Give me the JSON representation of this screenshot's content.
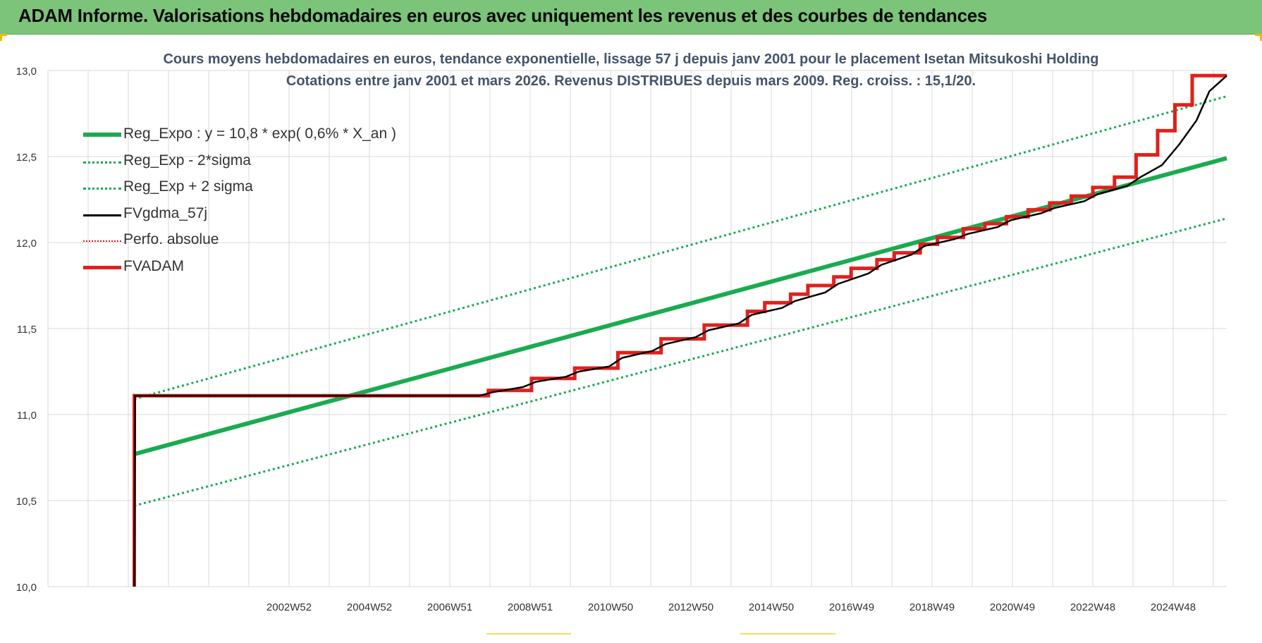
{
  "header": {
    "title": "ADAM Informe. Valorisations hebdomadaires en euros avec uniquement les revenus et des courbes de tendances"
  },
  "colors": {
    "banner": "#7cc47a",
    "trend": "#1aab50",
    "band": "#1aab50",
    "smooth": "#000000",
    "perf": "#e0201c",
    "adam": "#e0201c",
    "grid": "#d9d9d9",
    "title": "#44546a"
  },
  "chart_data": {
    "type": "line",
    "title": "Cours moyens hebdomadaires en euros, tendance exponentielle, lissage 57 j depuis janv 2001  pour le placement Isetan Mitsukoshi Holding",
    "subtitle": "Cotations entre janv 2001 et mars 2026. Revenus DISTRIBUES depuis mars 2009. Reg. croiss. : 15,1/20.",
    "xlabel": "",
    "ylabel": "",
    "ylim": [
      10.0,
      13.0
    ],
    "y_ticks": [
      "10,0",
      "10,5",
      "11,0",
      "11,5",
      "12,0",
      "12,5",
      "13,0"
    ],
    "x_ticks": [
      "2002W52",
      "2004W52",
      "2006W51",
      "2008W51",
      "2010W50",
      "2012W50",
      "2014W50",
      "2016W49",
      "2018W49",
      "2020W49",
      "2022W48",
      "2024W48"
    ],
    "x_range": [
      1999.0,
      2026.3
    ],
    "grid": true,
    "legend_position": "top-left",
    "series": [
      {
        "name": "Reg_Expo : y = 10,8 * exp( 0,6% *  X_an )",
        "style": "solid-thick",
        "points": [
          [
            2001.0,
            10.77
          ],
          [
            2026.3,
            12.49
          ]
        ]
      },
      {
        "name": "Reg_Exp - 2*sigma",
        "style": "dotted",
        "points": [
          [
            2001.0,
            10.47
          ],
          [
            2026.3,
            12.14
          ]
        ]
      },
      {
        "name": "Reg_Exp + 2 sigma",
        "style": "dotted",
        "points": [
          [
            2001.0,
            11.09
          ],
          [
            2026.3,
            12.85
          ]
        ]
      },
      {
        "name": "FVgdma_57j",
        "style": "solid",
        "points": [
          [
            2001.0,
            10.0
          ],
          [
            2001.02,
            11.11
          ],
          [
            2009.0,
            11.11
          ],
          [
            2009.3,
            11.13
          ],
          [
            2010.0,
            11.16
          ],
          [
            2010.3,
            11.19
          ],
          [
            2011.0,
            11.22
          ],
          [
            2011.3,
            11.25
          ],
          [
            2012.0,
            11.28
          ],
          [
            2012.3,
            11.33
          ],
          [
            2013.0,
            11.37
          ],
          [
            2013.3,
            11.41
          ],
          [
            2014.0,
            11.45
          ],
          [
            2014.3,
            11.49
          ],
          [
            2015.0,
            11.53
          ],
          [
            2015.3,
            11.58
          ],
          [
            2016.0,
            11.62
          ],
          [
            2016.3,
            11.66
          ],
          [
            2017.0,
            11.71
          ],
          [
            2017.3,
            11.76
          ],
          [
            2018.0,
            11.82
          ],
          [
            2018.3,
            11.87
          ],
          [
            2019.0,
            11.93
          ],
          [
            2019.3,
            11.98
          ],
          [
            2020.0,
            12.02
          ],
          [
            2020.3,
            12.05
          ],
          [
            2021.0,
            12.09
          ],
          [
            2021.3,
            12.13
          ],
          [
            2022.0,
            12.17
          ],
          [
            2022.3,
            12.2
          ],
          [
            2023.0,
            12.24
          ],
          [
            2023.3,
            12.28
          ],
          [
            2024.0,
            12.33
          ],
          [
            2024.3,
            12.38
          ],
          [
            2024.8,
            12.45
          ],
          [
            2025.2,
            12.57
          ],
          [
            2025.6,
            12.71
          ],
          [
            2025.9,
            12.88
          ],
          [
            2026.3,
            12.97
          ]
        ]
      },
      {
        "name": "Perfo. absolue",
        "style": "dotted",
        "points": []
      },
      {
        "name": "FVADAM",
        "style": "step-thick",
        "points": [
          [
            2001.0,
            10.0
          ],
          [
            2001.0,
            11.11
          ],
          [
            2009.2,
            11.11
          ],
          [
            2009.2,
            11.14
          ],
          [
            2010.2,
            11.14
          ],
          [
            2010.2,
            11.21
          ],
          [
            2011.2,
            11.21
          ],
          [
            2011.2,
            11.27
          ],
          [
            2012.2,
            11.27
          ],
          [
            2012.2,
            11.36
          ],
          [
            2013.2,
            11.36
          ],
          [
            2013.2,
            11.44
          ],
          [
            2014.2,
            11.44
          ],
          [
            2014.2,
            11.52
          ],
          [
            2015.2,
            11.52
          ],
          [
            2015.2,
            11.6
          ],
          [
            2015.6,
            11.6
          ],
          [
            2015.6,
            11.65
          ],
          [
            2016.2,
            11.65
          ],
          [
            2016.2,
            11.7
          ],
          [
            2016.6,
            11.7
          ],
          [
            2016.6,
            11.75
          ],
          [
            2017.2,
            11.75
          ],
          [
            2017.2,
            11.8
          ],
          [
            2017.6,
            11.8
          ],
          [
            2017.6,
            11.85
          ],
          [
            2018.2,
            11.85
          ],
          [
            2018.2,
            11.9
          ],
          [
            2018.6,
            11.9
          ],
          [
            2018.6,
            11.94
          ],
          [
            2019.2,
            11.94
          ],
          [
            2019.2,
            11.99
          ],
          [
            2019.6,
            11.99
          ],
          [
            2019.6,
            12.03
          ],
          [
            2020.2,
            12.03
          ],
          [
            2020.2,
            12.08
          ],
          [
            2020.7,
            12.08
          ],
          [
            2020.7,
            12.11
          ],
          [
            2021.2,
            12.11
          ],
          [
            2021.2,
            12.15
          ],
          [
            2021.7,
            12.15
          ],
          [
            2021.7,
            12.19
          ],
          [
            2022.2,
            12.19
          ],
          [
            2022.2,
            12.23
          ],
          [
            2022.7,
            12.23
          ],
          [
            2022.7,
            12.27
          ],
          [
            2023.2,
            12.27
          ],
          [
            2023.2,
            12.32
          ],
          [
            2023.7,
            12.32
          ],
          [
            2023.7,
            12.38
          ],
          [
            2024.2,
            12.38
          ],
          [
            2024.2,
            12.51
          ],
          [
            2024.7,
            12.51
          ],
          [
            2024.7,
            12.65
          ],
          [
            2025.1,
            12.65
          ],
          [
            2025.1,
            12.8
          ],
          [
            2025.5,
            12.8
          ],
          [
            2025.5,
            12.97
          ],
          [
            2026.3,
            12.97
          ]
        ]
      }
    ]
  }
}
